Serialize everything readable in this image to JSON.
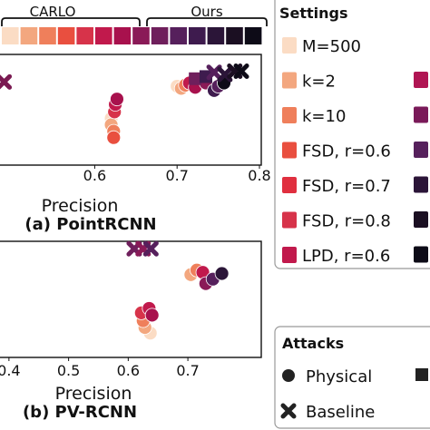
{
  "palette": {
    "carlo": [
      "#fbdcc4",
      "#f3a77f",
      "#ef7f5b",
      "#e94f3f",
      "#d7334a",
      "#c1194c",
      "#a8114d"
    ],
    "ours": [
      "#8a1a57",
      "#6f1f5c",
      "#56205c",
      "#3e1b4e",
      "#2b1538",
      "#1b0f22",
      "#0d0b17"
    ]
  },
  "chart_data": [
    {
      "panel": "a",
      "caption": "(a) PointRCNN",
      "type": "scatter",
      "xlabel": "Precision",
      "xticks": [
        "0.6",
        "0.7",
        "0.8"
      ],
      "xlim": [
        0.485,
        0.8
      ],
      "ylim": [
        0,
        1
      ],
      "points": [
        {
          "x": 0.49,
          "y": 0.76,
          "marker": "x",
          "color": "#7a1a52"
        },
        {
          "x": 0.62,
          "y": 0.42,
          "marker": "o",
          "color": "#fbdcc4"
        },
        {
          "x": 0.62,
          "y": 0.36,
          "marker": "o",
          "color": "#f3a77f"
        },
        {
          "x": 0.623,
          "y": 0.3,
          "marker": "o",
          "color": "#ef7f5b"
        },
        {
          "x": 0.623,
          "y": 0.24,
          "marker": "o",
          "color": "#e94f3f"
        },
        {
          "x": 0.624,
          "y": 0.48,
          "marker": "o",
          "color": "#d7334a"
        },
        {
          "x": 0.625,
          "y": 0.55,
          "marker": "o",
          "color": "#c1194c"
        },
        {
          "x": 0.627,
          "y": 0.6,
          "marker": "o",
          "color": "#a8114d"
        },
        {
          "x": 0.7,
          "y": 0.72,
          "marker": "o",
          "color": "#fbdcc4"
        },
        {
          "x": 0.705,
          "y": 0.7,
          "marker": "o",
          "color": "#f3a77f"
        },
        {
          "x": 0.71,
          "y": 0.73,
          "marker": "o",
          "color": "#ef7f5b"
        },
        {
          "x": 0.715,
          "y": 0.75,
          "marker": "o",
          "color": "#c1194c"
        },
        {
          "x": 0.722,
          "y": 0.71,
          "marker": "o",
          "color": "#a8114d"
        },
        {
          "x": 0.735,
          "y": 0.75,
          "marker": "o",
          "color": "#8a1a57"
        },
        {
          "x": 0.745,
          "y": 0.68,
          "marker": "o",
          "color": "#3e1b4e"
        },
        {
          "x": 0.75,
          "y": 0.72,
          "marker": "o",
          "color": "#56205c"
        },
        {
          "x": 0.757,
          "y": 0.75,
          "marker": "o",
          "color": "#0d0b17"
        },
        {
          "x": 0.722,
          "y": 0.79,
          "marker": "s",
          "color": "#6f1f5c"
        },
        {
          "x": 0.735,
          "y": 0.81,
          "marker": "s",
          "color": "#3e1b4e"
        },
        {
          "x": 0.745,
          "y": 0.85,
          "marker": "x",
          "color": "#56205c"
        },
        {
          "x": 0.758,
          "y": 0.83,
          "marker": "x",
          "color": "#2b1538"
        },
        {
          "x": 0.77,
          "y": 0.86,
          "marker": "x",
          "color": "#1b0f22"
        },
        {
          "x": 0.778,
          "y": 0.86,
          "marker": "x",
          "color": "#0d0b17"
        }
      ]
    },
    {
      "panel": "b",
      "caption": "(b) PV-RCNN",
      "type": "scatter",
      "xlabel": "Precision",
      "xticks": [
        "0.4",
        "0.5",
        "0.6",
        "0.7"
      ],
      "xlim": [
        0.385,
        0.82
      ],
      "ylim": [
        0,
        1
      ],
      "points": [
        {
          "x": 0.61,
          "y": 0.95,
          "marker": "x",
          "color": "#6f1f5c"
        },
        {
          "x": 0.625,
          "y": 0.95,
          "marker": "x",
          "color": "#8a1a57"
        },
        {
          "x": 0.638,
          "y": 0.95,
          "marker": "x",
          "color": "#56205c"
        },
        {
          "x": 0.637,
          "y": 0.2,
          "marker": "o",
          "color": "#fbdcc4"
        },
        {
          "x": 0.628,
          "y": 0.25,
          "marker": "o",
          "color": "#f3a77f"
        },
        {
          "x": 0.625,
          "y": 0.31,
          "marker": "o",
          "color": "#ef7f5b"
        },
        {
          "x": 0.622,
          "y": 0.38,
          "marker": "o",
          "color": "#d7334a"
        },
        {
          "x": 0.635,
          "y": 0.42,
          "marker": "o",
          "color": "#c1194c"
        },
        {
          "x": 0.64,
          "y": 0.36,
          "marker": "o",
          "color": "#a8114d"
        },
        {
          "x": 0.705,
          "y": 0.72,
          "marker": "o",
          "color": "#f3a77f"
        },
        {
          "x": 0.715,
          "y": 0.76,
          "marker": "o",
          "color": "#ef7f5b"
        },
        {
          "x": 0.725,
          "y": 0.74,
          "marker": "o",
          "color": "#c1194c"
        },
        {
          "x": 0.73,
          "y": 0.64,
          "marker": "o",
          "color": "#8a1a57"
        },
        {
          "x": 0.742,
          "y": 0.68,
          "marker": "o",
          "color": "#56205c"
        },
        {
          "x": 0.757,
          "y": 0.73,
          "marker": "o",
          "color": "#2b1538"
        }
      ]
    }
  ],
  "settings_legend": {
    "title": "Settings",
    "entries": [
      {
        "label": "M=500",
        "color": "#fbdcc4"
      },
      {
        "label": "k=2",
        "color": "#f3a77f"
      },
      {
        "label": "k=10",
        "color": "#ef7f5b"
      },
      {
        "label": "FSD, r=0.6",
        "color": "#e94f3f"
      },
      {
        "label": "FSD, r=0.7",
        "color": "#e02f3f"
      },
      {
        "label": "FSD, r=0.8",
        "color": "#d7334a"
      },
      {
        "label": "LPD, r=0.6",
        "color": "#c1194c"
      }
    ],
    "right_swatches": [
      "#b01553",
      "#7a1a59",
      "#56205c",
      "#2b1538",
      "#1b0f22",
      "#0d0b17"
    ]
  },
  "attacks_legend": {
    "title": "Attacks",
    "entries": [
      {
        "label": "Physical",
        "marker": "o"
      },
      {
        "label": "Baseline",
        "marker": "x"
      }
    ]
  },
  "top_bar": {
    "carlo_label": "CARLO",
    "ours_label": "Ours"
  }
}
